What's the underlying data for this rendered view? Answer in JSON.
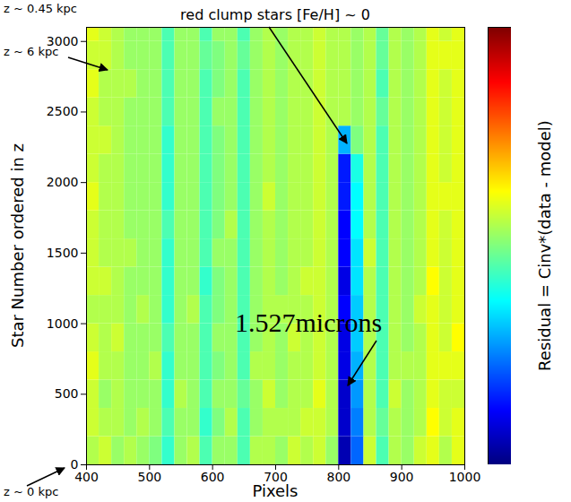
{
  "chart_data": {
    "type": "heatmap",
    "title": "red clump stars [Fe/H] ~ 0",
    "x_label": "Pixels",
    "y_label": "Star Number ordered in z",
    "xlim": [
      400,
      1000
    ],
    "xticks": [
      400,
      500,
      600,
      700,
      800,
      900,
      1000
    ],
    "ylim": [
      0,
      3100
    ],
    "yticks": [
      0,
      500,
      1000,
      1500,
      2000,
      2500,
      3000
    ],
    "annotations": [
      "z ~ 0.45 kpc",
      "z ~ 6 kpc",
      "z ~ 0 kpc",
      "1.527microns"
    ],
    "colorbar": {
      "label": "Residual = Cinv*(data - model)",
      "range": [
        -1,
        1
      ],
      "ticks": []
    },
    "x_edges": [
      400,
      420,
      440,
      460,
      480,
      500,
      520,
      540,
      560,
      580,
      600,
      620,
      640,
      660,
      680,
      700,
      720,
      740,
      760,
      780,
      800,
      820,
      840,
      860,
      880,
      900,
      920,
      940,
      960,
      980,
      1000
    ],
    "y_edges": [
      0,
      200,
      400,
      600,
      800,
      1000,
      1200,
      1400,
      1600,
      1800,
      2000,
      2200,
      2400,
      2600,
      2800,
      3000,
      3100
    ],
    "cells": [
      [
        0.1,
        0.15,
        0.05,
        0.1,
        0.05,
        0,
        -0.15,
        0.05,
        0.1,
        -0.1,
        0.05,
        0.05,
        -0.1,
        0.1,
        0.1,
        0.05,
        0.15,
        0.1,
        0.15,
        0.05,
        -0.9,
        -0.55,
        0.15,
        -0.1,
        0.1,
        0.05,
        0.15,
        0.2,
        0.1,
        0.2
      ],
      [
        0.15,
        0.1,
        0.1,
        0.05,
        0.1,
        0.05,
        -0.1,
        0.05,
        0.05,
        -0.15,
        0,
        0.1,
        -0.1,
        0.05,
        0.1,
        0.1,
        0.1,
        0.15,
        0.15,
        0.1,
        -0.85,
        -0.5,
        0.1,
        -0.05,
        0.1,
        0.05,
        0.1,
        0.25,
        0.15,
        0.2
      ],
      [
        0.15,
        0.05,
        0.1,
        0.05,
        0.05,
        0.05,
        -0.15,
        0.1,
        0.05,
        -0.1,
        0.05,
        0.05,
        -0.05,
        0.05,
        0.15,
        0.05,
        0.1,
        0.1,
        0.2,
        0.1,
        -0.85,
        -0.45,
        0.1,
        -0.1,
        0.15,
        0.05,
        0.1,
        0.2,
        0.15,
        0.15
      ],
      [
        0.2,
        0.1,
        0.1,
        0.05,
        0.05,
        0.1,
        -0.15,
        0.05,
        0.05,
        -0.1,
        0,
        0.05,
        -0.1,
        0.1,
        0.1,
        0.05,
        0.1,
        0.1,
        0.15,
        0.1,
        -0.8,
        -0.4,
        0.1,
        -0.1,
        0.1,
        0.1,
        0.1,
        0.2,
        0.2,
        0.2
      ],
      [
        0.15,
        0.1,
        0.15,
        0.05,
        0.05,
        0.05,
        -0.1,
        0.05,
        0.05,
        -0.1,
        0.05,
        0.05,
        -0.1,
        0.05,
        0.1,
        0.05,
        0.15,
        0.1,
        0.15,
        0.1,
        -0.8,
        -0.35,
        0.1,
        -0.1,
        0.1,
        0.05,
        0.1,
        0.2,
        0.15,
        0.25
      ],
      [
        0.1,
        0.1,
        0.1,
        0.05,
        0.1,
        0.05,
        -0.15,
        0.05,
        0.1,
        -0.1,
        0,
        0.05,
        -0.1,
        0.05,
        0.1,
        0.1,
        0.1,
        0.1,
        0.15,
        0.1,
        -0.75,
        -0.35,
        0.1,
        -0.1,
        0.1,
        0.05,
        0.15,
        0.2,
        0.15,
        0.2
      ],
      [
        0.15,
        0.15,
        0.1,
        0.05,
        0.05,
        0.05,
        -0.15,
        0.05,
        0.05,
        -0.15,
        0,
        0.05,
        -0.1,
        0.05,
        0.1,
        0.05,
        0.1,
        0.15,
        0.15,
        0.1,
        -0.8,
        -0.3,
        0.1,
        -0.1,
        0.1,
        0.05,
        0.1,
        0.25,
        0.15,
        0.2
      ],
      [
        0.15,
        0.1,
        0.1,
        0.1,
        0.05,
        0.05,
        -0.15,
        0.05,
        0.05,
        -0.1,
        0.05,
        0.05,
        -0.1,
        0.05,
        0.1,
        0.05,
        0.1,
        0.1,
        0.15,
        0.1,
        -0.75,
        -0.3,
        0.15,
        -0.1,
        0.1,
        0.05,
        0.1,
        0.2,
        0.15,
        0.2
      ],
      [
        0.15,
        0.1,
        0.1,
        0.05,
        0.05,
        0.05,
        -0.1,
        0.05,
        0.05,
        -0.1,
        0,
        0.1,
        -0.1,
        0.05,
        0.1,
        0.05,
        0.1,
        0.1,
        0.15,
        0.1,
        -0.75,
        -0.25,
        0.1,
        -0.1,
        0.1,
        0.05,
        0.1,
        0.2,
        0.15,
        0.2
      ],
      [
        0.2,
        0.1,
        0.1,
        0.05,
        0.05,
        0.05,
        -0.15,
        0.05,
        0.05,
        -0.1,
        0,
        0.05,
        -0.1,
        0.05,
        0.15,
        0.05,
        0.1,
        0.1,
        0.15,
        0.1,
        -0.7,
        -0.25,
        0.1,
        -0.1,
        0.1,
        0.05,
        0.1,
        0.2,
        0.2,
        0.2
      ],
      [
        0.15,
        0.1,
        0.1,
        0.05,
        0.05,
        0.05,
        -0.15,
        0.05,
        0.05,
        -0.1,
        0,
        0.05,
        -0.1,
        0.05,
        0.1,
        0.05,
        0.1,
        0.1,
        0.15,
        0.1,
        -0.7,
        -0.2,
        0.1,
        -0.1,
        0.1,
        0.05,
        0.1,
        0.2,
        0.15,
        0.2
      ],
      [
        0.15,
        0.15,
        0.1,
        0.05,
        0.05,
        0.05,
        -0.15,
        0.05,
        0.05,
        -0.1,
        0,
        0.05,
        -0.1,
        0.05,
        0.1,
        0.05,
        0.1,
        0.1,
        0.15,
        0.1,
        -0.4,
        0,
        0.1,
        -0.1,
        0.1,
        0.05,
        0.1,
        0.2,
        0.15,
        0.2
      ],
      [
        0.15,
        0.1,
        0.1,
        0.05,
        0.05,
        0.05,
        -0.1,
        0.05,
        0.05,
        -0.1,
        0.05,
        0.05,
        -0.1,
        0.05,
        0.1,
        0.05,
        0.1,
        0.1,
        0.15,
        0.1,
        0.1,
        0.05,
        0.1,
        -0.05,
        0.1,
        0.05,
        0.1,
        0.2,
        0.15,
        0.2
      ],
      [
        0.2,
        0.1,
        0.1,
        0.1,
        0.05,
        0.05,
        -0.1,
        0.05,
        0.05,
        -0.1,
        0,
        0.05,
        -0.1,
        0.05,
        0.1,
        0.05,
        0.1,
        0.1,
        0.15,
        0.1,
        0.1,
        0.05,
        0.1,
        -0.1,
        0.1,
        0.05,
        0.1,
        0.2,
        0.15,
        0.2
      ],
      [
        0.15,
        0.15,
        0.1,
        0.05,
        0.05,
        0.05,
        -0.1,
        0.05,
        0.05,
        -0.05,
        0,
        0.05,
        -0.05,
        0.05,
        0.1,
        0.05,
        0.1,
        0.1,
        0.15,
        0.1,
        0.1,
        0.05,
        0.1,
        -0.05,
        0.1,
        0.05,
        0.1,
        0.2,
        0.2,
        0.2
      ],
      [
        0.2,
        0.15,
        0.1,
        0.05,
        0.05,
        0.05,
        -0.1,
        0.05,
        0.05,
        -0.1,
        0.05,
        0.05,
        -0.1,
        0.05,
        0.1,
        0.05,
        0.1,
        0.1,
        0.15,
        0.1,
        0.1,
        0.05,
        0.1,
        -0.05,
        0.1,
        0.05,
        0.1,
        0.2,
        0.15,
        0.2
      ]
    ]
  }
}
